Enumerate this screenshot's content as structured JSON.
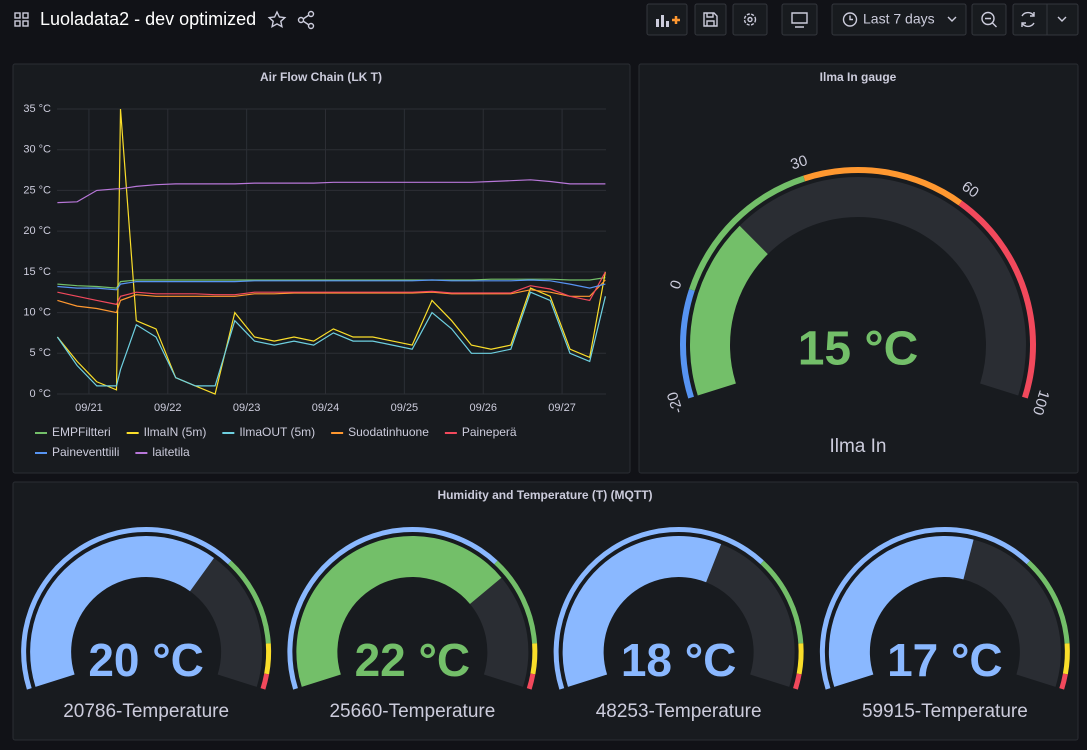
{
  "header": {
    "title": "Luoladata2 - dev optimized",
    "time_range": "Last 7 days"
  },
  "chart_data": [
    {
      "type": "line",
      "title": "Air Flow Chain (LK T)",
      "x": [
        20.6,
        20.85,
        21.1,
        21.35,
        21.4,
        21.6,
        21.85,
        22.1,
        22.35,
        22.6,
        22.85,
        23.1,
        23.35,
        23.6,
        23.85,
        24.1,
        24.35,
        24.6,
        24.85,
        25.1,
        25.35,
        25.6,
        25.85,
        26.1,
        26.35,
        26.6,
        26.85,
        27.1,
        27.35,
        27.55
      ],
      "xlim": [
        20.595,
        27.557
      ],
      "xticks": [
        {
          "value": 21,
          "label": "09/21"
        },
        {
          "value": 22,
          "label": "09/22"
        },
        {
          "value": 23,
          "label": "09/23"
        },
        {
          "value": 24,
          "label": "09/24"
        },
        {
          "value": 25,
          "label": "09/25"
        },
        {
          "value": 26,
          "label": "09/26"
        },
        {
          "value": 27,
          "label": "09/27"
        }
      ],
      "ylim": [
        0,
        35
      ],
      "yticks": [
        {
          "value": 0,
          "label": "0 °C"
        },
        {
          "value": 5,
          "label": "5 °C"
        },
        {
          "value": 10,
          "label": "10 °C"
        },
        {
          "value": 15,
          "label": "15 °C"
        },
        {
          "value": 20,
          "label": "20 °C"
        },
        {
          "value": 25,
          "label": "25 °C"
        },
        {
          "value": 30,
          "label": "30 °C"
        },
        {
          "value": 35,
          "label": "35 °C"
        }
      ],
      "grid": true,
      "legend": "bottom",
      "series": [
        {
          "name": "EMPFiltteri",
          "color": "#73bf69",
          "values": [
            13.5,
            13.3,
            13.2,
            13.0,
            13.8,
            14,
            14,
            14,
            14,
            14,
            14,
            14,
            14,
            14,
            14,
            14,
            14,
            14,
            14,
            14,
            14,
            14,
            14,
            14.1,
            14.1,
            14.1,
            14.1,
            14,
            14,
            14.3
          ]
        },
        {
          "name": "IlmaIN (5m)",
          "color": "#fade2a",
          "values": [
            7,
            4,
            1.5,
            0.5,
            35,
            9,
            8,
            2,
            1,
            0,
            10,
            7,
            6.5,
            7,
            6.5,
            8,
            7,
            7,
            6.5,
            6,
            11.5,
            9,
            6,
            5.5,
            6,
            13,
            12,
            5.5,
            4.5,
            15
          ]
        },
        {
          "name": "IlmaOUT (5m)",
          "color": "#6ed0e0",
          "values": [
            7,
            3.5,
            1,
            1,
            3,
            8.5,
            7,
            2,
            1,
            1,
            9,
            6.5,
            6,
            6.5,
            6,
            7.5,
            6.5,
            6.5,
            6,
            5.5,
            10,
            8,
            5,
            5,
            5.5,
            12.5,
            11.5,
            5,
            4,
            12
          ]
        },
        {
          "name": "Suodatinhuone",
          "color": "#ff9830",
          "values": [
            11.5,
            10.8,
            10.5,
            10,
            11.5,
            12.2,
            12,
            12,
            12,
            12,
            12,
            12.3,
            12.3,
            12.4,
            12.4,
            12.4,
            12.4,
            12.4,
            12.4,
            12.4,
            12.5,
            12.3,
            12.3,
            12.3,
            12.3,
            12.8,
            12.5,
            12,
            12,
            14
          ]
        },
        {
          "name": "Paineperä",
          "color": "#f2495c",
          "values": [
            12.5,
            12,
            11.5,
            11,
            12,
            12.5,
            12.3,
            12.3,
            12.3,
            12.2,
            12.2,
            12.5,
            12.5,
            12.5,
            12.5,
            12.5,
            12.5,
            12.5,
            12.5,
            12.5,
            12.6,
            12.4,
            12.4,
            12.4,
            12.4,
            13.3,
            12.9,
            12,
            11.5,
            15
          ]
        },
        {
          "name": "Paineventtiili",
          "color": "#5794f2",
          "values": [
            13.2,
            13,
            13,
            12.8,
            13.5,
            13.8,
            13.8,
            13.8,
            13.8,
            13.8,
            13.8,
            13.9,
            13.9,
            13.9,
            13.9,
            13.9,
            13.9,
            13.9,
            13.9,
            13.9,
            14,
            13.9,
            13.9,
            13.9,
            13.9,
            14,
            13.9,
            13.5,
            13,
            13.5
          ]
        },
        {
          "name": "laitetila",
          "color": "#b877d9",
          "values": [
            23.5,
            23.6,
            25,
            25.2,
            25.2,
            25.5,
            25.7,
            25.8,
            25.8,
            25.8,
            25.8,
            25.9,
            25.9,
            25.9,
            25.9,
            26,
            26,
            26,
            26,
            26,
            26,
            26,
            26,
            26.1,
            26.2,
            26.3,
            26.1,
            25.8,
            25.8,
            25.8
          ]
        }
      ]
    },
    {
      "type": "gauge",
      "title": "Ilma In gauge",
      "min": -20,
      "max": 100,
      "ticks": [
        -20,
        0,
        30,
        60,
        100
      ],
      "thresholds": [
        {
          "value": -20,
          "color": "#5794f2"
        },
        {
          "value": 0,
          "color": "#73bf69"
        },
        {
          "value": 30,
          "color": "#ff9830"
        },
        {
          "value": 60,
          "color": "#f2495c"
        }
      ],
      "gauges": [
        {
          "name": "Ilma In",
          "value": 15,
          "value_label": "15 °C"
        }
      ]
    },
    {
      "type": "gauge",
      "title": "Humidity and Temperature (T) (MQTT)",
      "min": 0,
      "max": 30,
      "thresholds": [
        {
          "value": 0,
          "color": "#8ab8ff"
        },
        {
          "value": 21,
          "color": "#73bf69"
        },
        {
          "value": 27,
          "color": "#fade2a"
        },
        {
          "value": 29,
          "color": "#f2495c"
        }
      ],
      "gauges": [
        {
          "name": "20786-Temperature",
          "value": 20,
          "value_label": "20 °C"
        },
        {
          "name": "25660-Temperature",
          "value": 22,
          "value_label": "22 °C"
        },
        {
          "name": "48253-Temperature",
          "value": 18,
          "value_label": "18 °C"
        },
        {
          "name": "59915-Temperature",
          "value": 17,
          "value_label": "17 °C"
        }
      ]
    }
  ]
}
